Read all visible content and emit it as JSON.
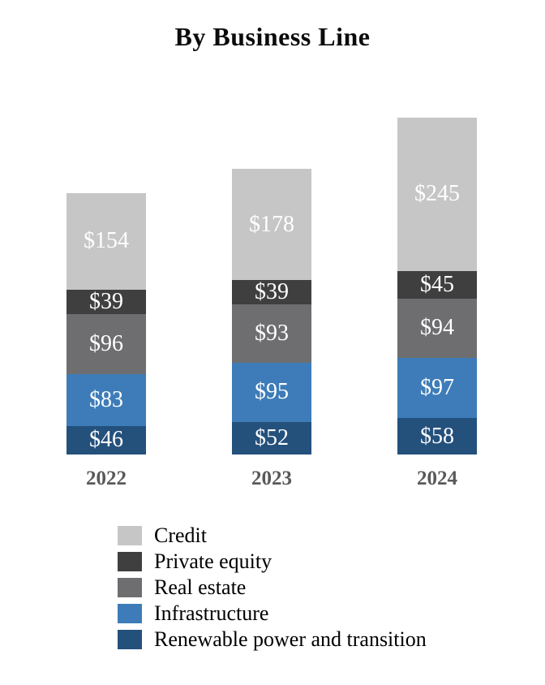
{
  "title": "By Business Line",
  "chart_data": {
    "type": "bar",
    "stacked": true,
    "title": "By Business Line",
    "categories": [
      "2022",
      "2023",
      "2024"
    ],
    "series": [
      {
        "name": "Credit",
        "color": "#C6C6C7",
        "values": [
          154,
          178,
          245
        ],
        "labels": [
          "$154",
          "$178",
          "$245"
        ]
      },
      {
        "name": "Private equity",
        "color": "#3F3F40",
        "values": [
          39,
          39,
          45
        ],
        "labels": [
          "$39",
          "$39",
          "$45"
        ]
      },
      {
        "name": "Real estate",
        "color": "#6E6E70",
        "values": [
          96,
          93,
          94
        ],
        "labels": [
          "$96",
          "$93",
          "$94"
        ]
      },
      {
        "name": "Infrastructure",
        "color": "#3D7CB8",
        "values": [
          83,
          95,
          97
        ],
        "labels": [
          "$83",
          "$95",
          "$97"
        ]
      },
      {
        "name": "Renewable power and transition",
        "color": "#24507C",
        "values": [
          46,
          52,
          58
        ],
        "labels": [
          "$46",
          "$52",
          "$58"
        ]
      }
    ],
    "totals": [
      418,
      457,
      539
    ],
    "stack_order": "top-to-bottom",
    "value_prefix": "$",
    "value_label_color": "#FFFFFF",
    "axis_label_color": "#595959",
    "title_color": "#0B0B0B",
    "y_axis": "hidden",
    "grid": false,
    "legend_position": "bottom"
  }
}
